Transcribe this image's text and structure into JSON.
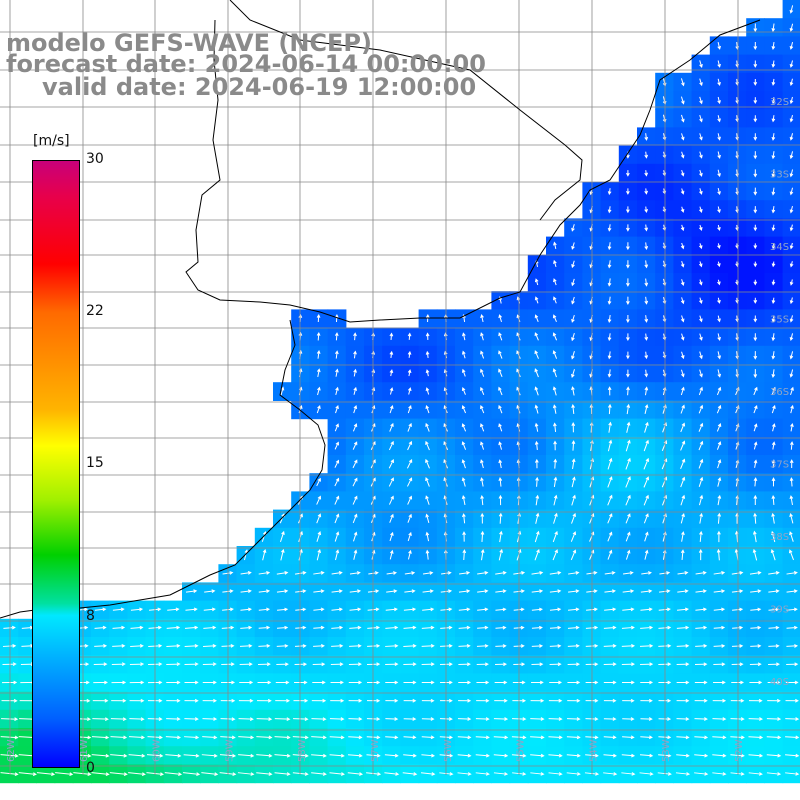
{
  "header": {
    "line1": "modelo GEFS-WAVE (NCEP)",
    "line2": "forecast date: 2024-06-14 00:00:00",
    "line3": "valid date: 2024-06-19 12:00:00"
  },
  "colorbar": {
    "unit": "[m/s]",
    "ticks": [
      "30",
      "22",
      "15",
      "8",
      "0"
    ],
    "range": [
      0,
      30
    ],
    "colors": [
      "#0000ff",
      "#0060ff",
      "#00b0ff",
      "#00e8ff",
      "#00d000",
      "#ffff00",
      "#ff6a00",
      "#ff0000",
      "#c8007a"
    ]
  },
  "map": {
    "right_edge_lat_labels": [
      "32S",
      "33S",
      "34S",
      "35S",
      "36S",
      "37S",
      "38S",
      "39S",
      "40S"
    ],
    "bottom_lon_labels": [
      "62W",
      "61W",
      "60W",
      "59W",
      "58W",
      "57W",
      "56W",
      "55W",
      "54W",
      "53W",
      "52W"
    ],
    "colors": {
      "land": "#ffffff",
      "coast": "#000000",
      "grid": "#888888",
      "arrows": "#ffffff"
    }
  }
}
